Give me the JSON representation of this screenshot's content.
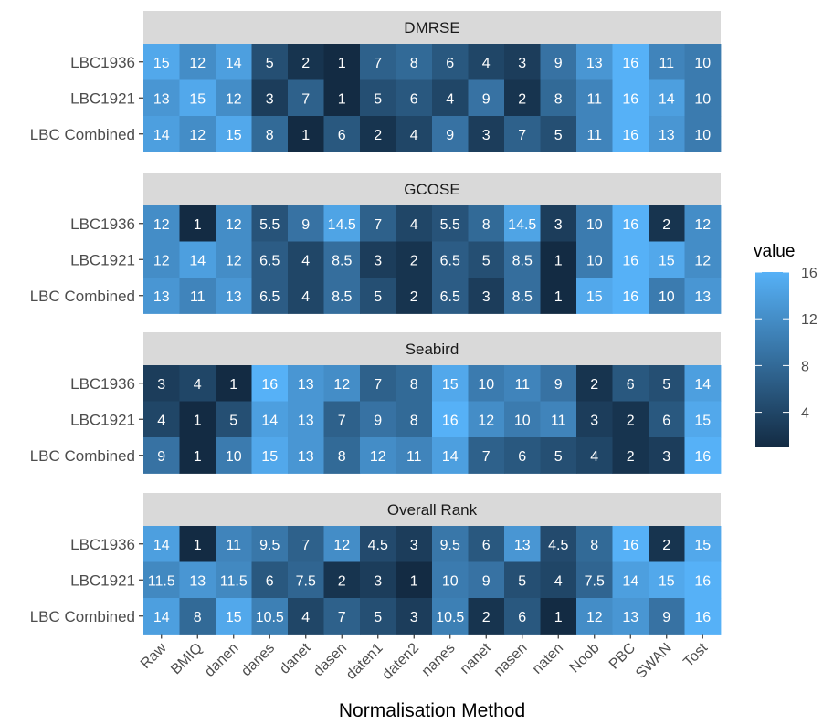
{
  "chart_data": {
    "type": "heatmap",
    "xlabel": "Normalisation Method",
    "columns": [
      "Raw",
      "BMIQ",
      "danen",
      "danes",
      "danet",
      "dasen",
      "daten1",
      "daten2",
      "nanes",
      "nanet",
      "nasen",
      "naten",
      "Noob",
      "PBC",
      "SWAN",
      "Tost"
    ],
    "rows": [
      "LBC1936",
      "LBC1921",
      "LBC Combined"
    ],
    "panels": [
      {
        "title": "DMRSE",
        "values": [
          [
            "15",
            "12",
            "14",
            "5",
            "2",
            "1",
            "7",
            "8",
            "6",
            "4",
            "3",
            "9",
            "13",
            "16",
            "11",
            "10"
          ],
          [
            "13",
            "15",
            "12",
            "3",
            "7",
            "1",
            "5",
            "6",
            "4",
            "9",
            "2",
            "8",
            "11",
            "16",
            "14",
            "10"
          ],
          [
            "14",
            "12",
            "15",
            "8",
            "1",
            "6",
            "2",
            "4",
            "9",
            "3",
            "7",
            "5",
            "11",
            "16",
            "13",
            "10"
          ]
        ]
      },
      {
        "title": "GCOSE",
        "values": [
          [
            "12",
            "1",
            "12",
            "5.5",
            "9",
            "14.5",
            "7",
            "4",
            "5.5",
            "8",
            "14.5",
            "3",
            "10",
            "16",
            "2",
            "12"
          ],
          [
            "12",
            "14",
            "12",
            "6.5",
            "4",
            "8.5",
            "3",
            "2",
            "6.5",
            "5",
            "8.5",
            "1",
            "10",
            "16",
            "15",
            "12"
          ],
          [
            "13",
            "11",
            "13",
            "6.5",
            "4",
            "8.5",
            "5",
            "2",
            "6.5",
            "3",
            "8.5",
            "1",
            "15",
            "16",
            "10",
            "13"
          ]
        ]
      },
      {
        "title": "Seabird",
        "values": [
          [
            "3",
            "4",
            "1",
            "16",
            "13",
            "12",
            "7",
            "8",
            "15",
            "10",
            "11",
            "9",
            "2",
            "6",
            "5",
            "14"
          ],
          [
            "4",
            "1",
            "5",
            "14",
            "13",
            "7",
            "9",
            "8",
            "16",
            "12",
            "10",
            "11",
            "3",
            "2",
            "6",
            "15"
          ],
          [
            "9",
            "1",
            "10",
            "15",
            "13",
            "8",
            "12",
            "11",
            "14",
            "7",
            "6",
            "5",
            "4",
            "2",
            "3",
            "16"
          ]
        ]
      },
      {
        "title": "Overall Rank",
        "values": [
          [
            "14",
            "1",
            "11",
            "9.5",
            "7",
            "12",
            "4.5",
            "3",
            "9.5",
            "6",
            "13",
            "4.5",
            "8",
            "16",
            "2",
            "15"
          ],
          [
            "11.5",
            "13",
            "11.5",
            "6",
            "7.5",
            "2",
            "3",
            "1",
            "10",
            "9",
            "5",
            "4",
            "7.5",
            "14",
            "15",
            "16"
          ],
          [
            "14",
            "8",
            "15",
            "10.5",
            "4",
            "7",
            "5",
            "3",
            "10.5",
            "2",
            "6",
            "1",
            "12",
            "13",
            "9",
            "16"
          ]
        ]
      }
    ],
    "legend": {
      "title": "value",
      "ticks": [
        "4",
        "8",
        "12",
        "16"
      ],
      "range": [
        1,
        16
      ],
      "low_color": "#132B43",
      "high_color": "#56B1F7",
      "placement": "right"
    },
    "strip_fill": "#d9d9d9",
    "panel_background": "#ebebeb"
  }
}
